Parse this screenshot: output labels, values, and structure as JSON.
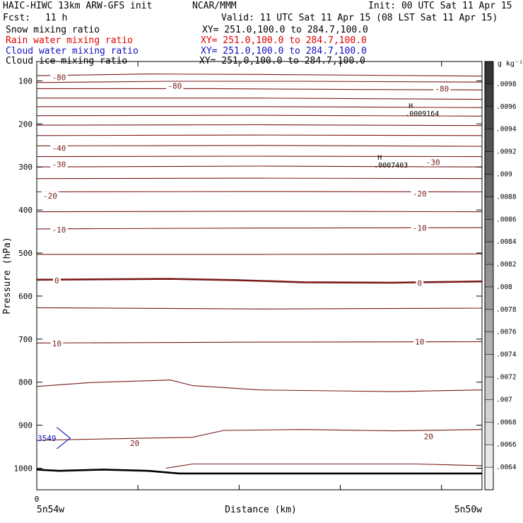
{
  "header": {
    "title": "HAIC-HIWC 13km ARW-GFS init",
    "org": "NCAR/MMM",
    "init": "Init: 00 UTC Sat 11 Apr 15",
    "fcst_label": "Fcst:",
    "fcst_value": "11 h",
    "valid": "Valid: 11 UTC Sat 11 Apr 15 (08 LST Sat 11 Apr 15)"
  },
  "fields": [
    {
      "name": "Snow mixing ratio",
      "xy": "XY= 251.0,100.0 to 284.7,100.0",
      "color": "#000000"
    },
    {
      "name": "Rain water mixing ratio",
      "xy": "XY= 251.0,100.0 to 284.7,100.0",
      "color": "#e00000"
    },
    {
      "name": "Cloud water mixing ratio",
      "xy": "XY= 251.0,100.0 to 284.7,100.0",
      "color": "#1010c0"
    },
    {
      "name": "Cloud ice mixing ratio",
      "xy": "XY= 251.0,100.0 to 284.7,100.0",
      "color": "#000000"
    }
  ],
  "chart_data": {
    "type": "line",
    "xlabel": "Distance (km)",
    "ylabel": "Pressure (hPa)",
    "x_origin_label": "0",
    "x_left_label": "5n54w",
    "x_right_label": "5n50w",
    "xlim": [
      0,
      1
    ],
    "ylim": [
      1050,
      55
    ],
    "y_ticks": [
      100,
      200,
      300,
      400,
      500,
      600,
      700,
      800,
      900,
      1000
    ],
    "temp_contour_labels": [
      {
        "text": "-80",
        "x": 0.05,
        "y": 92
      },
      {
        "text": "-80",
        "x": 0.31,
        "y": 112
      },
      {
        "text": "-80",
        "x": 0.91,
        "y": 118
      },
      {
        "text": "-40",
        "x": 0.05,
        "y": 256
      },
      {
        "text": "-30",
        "x": 0.05,
        "y": 294
      },
      {
        "text": "-30",
        "x": 0.89,
        "y": 289
      },
      {
        "text": "-20",
        "x": 0.03,
        "y": 367
      },
      {
        "text": "-20",
        "x": 0.86,
        "y": 362
      },
      {
        "text": "-10",
        "x": 0.05,
        "y": 446
      },
      {
        "text": "-10",
        "x": 0.86,
        "y": 442
      },
      {
        "text": "0",
        "x": 0.045,
        "y": 564
      },
      {
        "text": "0",
        "x": 0.86,
        "y": 570
      },
      {
        "text": "10",
        "x": 0.045,
        "y": 710
      },
      {
        "text": "10",
        "x": 0.86,
        "y": 706
      },
      {
        "text": "20",
        "x": 0.22,
        "y": 942
      },
      {
        "text": "20",
        "x": 0.88,
        "y": 926
      }
    ],
    "temp_contours": [
      {
        "bold": false,
        "points": [
          [
            0,
            88
          ],
          [
            0.25,
            84
          ],
          [
            0.5,
            85
          ],
          [
            0.75,
            87
          ],
          [
            1,
            89
          ]
        ]
      },
      {
        "bold": false,
        "points": [
          [
            0,
            104
          ],
          [
            0.3,
            101
          ],
          [
            0.6,
            101
          ],
          [
            1,
            103
          ]
        ]
      },
      {
        "bold": false,
        "points": [
          [
            0,
            118
          ],
          [
            0.4,
            118
          ],
          [
            0.7,
            120
          ],
          [
            1,
            121
          ]
        ]
      },
      {
        "bold": false,
        "points": [
          [
            0,
            140
          ],
          [
            0.5,
            140
          ],
          [
            1,
            143
          ]
        ]
      },
      {
        "bold": false,
        "points": [
          [
            0,
            160
          ],
          [
            0.5,
            160
          ],
          [
            1,
            162
          ]
        ]
      },
      {
        "bold": false,
        "points": [
          [
            0,
            181
          ],
          [
            0.5,
            180
          ],
          [
            1,
            182
          ]
        ]
      },
      {
        "bold": false,
        "points": [
          [
            0,
            203
          ],
          [
            0.5,
            202
          ],
          [
            1,
            204
          ]
        ]
      },
      {
        "bold": false,
        "points": [
          [
            0,
            227
          ],
          [
            0.5,
            226
          ],
          [
            1,
            227
          ]
        ]
      },
      {
        "bold": false,
        "points": [
          [
            0,
            251
          ],
          [
            0.5,
            250
          ],
          [
            1,
            252
          ]
        ]
      },
      {
        "bold": false,
        "points": [
          [
            0,
            276
          ],
          [
            0.5,
            275
          ],
          [
            1,
            276
          ]
        ]
      },
      {
        "bold": false,
        "points": [
          [
            0,
            300
          ],
          [
            0.5,
            298
          ],
          [
            1,
            300
          ]
        ]
      },
      {
        "bold": false,
        "points": [
          [
            0,
            327
          ],
          [
            0.5,
            326
          ],
          [
            1,
            327
          ]
        ]
      },
      {
        "bold": false,
        "points": [
          [
            0,
            358
          ],
          [
            0.5,
            357
          ],
          [
            1,
            358
          ]
        ]
      },
      {
        "bold": false,
        "points": [
          [
            0,
            404
          ],
          [
            0.5,
            403
          ],
          [
            1,
            404
          ]
        ]
      },
      {
        "bold": false,
        "points": [
          [
            0,
            444
          ],
          [
            0.5,
            442
          ],
          [
            1,
            441
          ]
        ]
      },
      {
        "bold": false,
        "points": [
          [
            0,
            503
          ],
          [
            0.5,
            503
          ],
          [
            1,
            502
          ]
        ]
      },
      {
        "bold": true,
        "points": [
          [
            0,
            562
          ],
          [
            0.3,
            560
          ],
          [
            0.45,
            563
          ],
          [
            0.6,
            568
          ],
          [
            0.8,
            569
          ],
          [
            1,
            566
          ]
        ]
      },
      {
        "bold": false,
        "points": [
          [
            0,
            627
          ],
          [
            0.5,
            630
          ],
          [
            1,
            628
          ]
        ]
      },
      {
        "bold": false,
        "points": [
          [
            0,
            709
          ],
          [
            0.5,
            707
          ],
          [
            1,
            706
          ]
        ]
      },
      {
        "bold": false,
        "points": [
          [
            0,
            810
          ],
          [
            0.12,
            801
          ],
          [
            0.3,
            795
          ],
          [
            0.35,
            808
          ],
          [
            0.5,
            818
          ],
          [
            0.8,
            822
          ],
          [
            1,
            818
          ]
        ]
      },
      {
        "bold": false,
        "points": [
          [
            0,
            935
          ],
          [
            0.15,
            932
          ],
          [
            0.35,
            928
          ],
          [
            0.42,
            912
          ],
          [
            0.6,
            910
          ],
          [
            0.8,
            913
          ],
          [
            1,
            910
          ]
        ]
      },
      {
        "bold": false,
        "points": [
          [
            0.29,
            1000
          ],
          [
            0.35,
            990
          ],
          [
            0.6,
            990
          ],
          [
            0.85,
            990
          ],
          [
            1,
            994
          ]
        ]
      }
    ],
    "terrain": {
      "points": [
        [
          0,
          1003
        ],
        [
          0.05,
          1006
        ],
        [
          0.15,
          1003
        ],
        [
          0.25,
          1006
        ],
        [
          0.32,
          1012
        ],
        [
          1,
          1012
        ]
      ]
    },
    "maxima": [
      {
        "marker": "H",
        "value": ".0009164",
        "x": 0.84,
        "y": 170
      },
      {
        "marker": "H",
        "value": ".0007403",
        "x": 0.77,
        "y": 290
      }
    ],
    "cloud_water_label": {
      "text": "3549",
      "x": 0.0,
      "y": 930
    },
    "cloud_water_contour": {
      "points": [
        [
          0.045,
          905
        ],
        [
          0.075,
          930
        ],
        [
          0.045,
          955
        ]
      ]
    },
    "colorbar": {
      "unit": "g kg⁻¹",
      "labels": [
        ".0098",
        ".0096",
        ".0094",
        ".0092",
        ".009",
        ".0088",
        ".0086",
        ".0084",
        ".0082",
        ".008",
        ".0078",
        ".0076",
        ".0074",
        ".0072",
        ".007",
        ".0068",
        ".0066",
        ".0064"
      ],
      "dark_color": "#333333",
      "light_color": "#f2f2f2"
    }
  }
}
